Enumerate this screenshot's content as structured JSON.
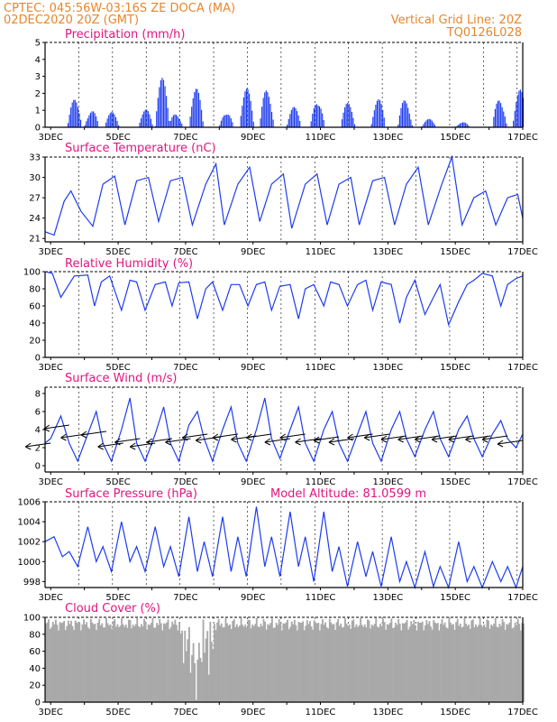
{
  "header": {
    "line1_left": "CPTEC:   045:56W-03:16S   ZE DOCA (MA)",
    "line2_left": "02DEC2020 20Z (GMT)",
    "line1_right": "Vertical Grid Line: 20Z",
    "line2_right": "TQ0126L028"
  },
  "x_labels": [
    "3DEC",
    "5DEC",
    "7DEC",
    "9DEC",
    "11DEC",
    "13DEC",
    "15DEC",
    "17DEC"
  ],
  "colors": {
    "header": "#e8862a",
    "title": "#e0157f",
    "series": "#1e3cf0",
    "cloud": "#a9a9a9"
  },
  "chart_data": [
    {
      "type": "bar",
      "title": "Precipitation (mm/h)",
      "ylim": [
        0,
        5
      ],
      "yticks": [
        0,
        1,
        2,
        3,
        4,
        5
      ],
      "x_start_day": 2.833,
      "x_end_day": 17,
      "step_hours": 1,
      "peaks": [
        [
          3.7,
          1.8
        ],
        [
          4.2,
          1.4
        ],
        [
          4.8,
          0.9
        ],
        [
          5.8,
          1.2
        ],
        [
          6.3,
          3.0
        ],
        [
          6.7,
          1.1
        ],
        [
          7.3,
          2.4
        ],
        [
          8.2,
          1.3
        ],
        [
          8.8,
          2.3
        ],
        [
          9.4,
          3.0
        ],
        [
          10.2,
          1.2
        ],
        [
          10.9,
          2.3
        ],
        [
          11.8,
          1.5
        ],
        [
          12.7,
          1.8
        ],
        [
          13.5,
          2.2
        ],
        [
          14.2,
          0.5
        ],
        [
          15.2,
          0.4
        ],
        [
          16.3,
          2.4
        ],
        [
          16.9,
          2.3
        ]
      ]
    },
    {
      "type": "line",
      "title": "Surface Temperature (nC)",
      "ylim": [
        20.5,
        33
      ],
      "yticks": [
        21,
        24,
        27,
        30,
        33
      ],
      "x": [
        2.83,
        3.1,
        3.4,
        3.6,
        3.9,
        4.25,
        4.55,
        4.9,
        5.2,
        5.55,
        5.9,
        6.2,
        6.55,
        6.9,
        7.2,
        7.6,
        7.9,
        8.15,
        8.55,
        8.9,
        9.2,
        9.55,
        9.9,
        10.15,
        10.55,
        10.9,
        11.2,
        11.55,
        11.9,
        12.15,
        12.55,
        12.9,
        13.2,
        13.55,
        13.9,
        14.2,
        14.6,
        14.9,
        15.2,
        15.55,
        15.9,
        16.2,
        16.55,
        16.85,
        17.0
      ],
      "y": [
        22.0,
        21.5,
        26.5,
        28.0,
        25.0,
        22.8,
        29.0,
        30.2,
        23.0,
        29.5,
        30.0,
        23.5,
        29.5,
        30.0,
        23.0,
        29.0,
        32.0,
        23.0,
        29.0,
        31.5,
        23.5,
        29.0,
        30.5,
        22.5,
        29.0,
        30.5,
        23.0,
        29.0,
        30.0,
        23.0,
        29.5,
        30.0,
        23.0,
        29.0,
        31.5,
        23.0,
        29.0,
        33.0,
        23.0,
        27.0,
        28.0,
        23.0,
        27.0,
        27.5,
        24.0
      ]
    },
    {
      "type": "line",
      "title": "Relative Humidity (%)",
      "ylim": [
        0,
        100
      ],
      "yticks": [
        0,
        20,
        40,
        60,
        80,
        100
      ],
      "x": [
        2.83,
        3.05,
        3.3,
        3.7,
        4.1,
        4.3,
        4.5,
        4.75,
        5.1,
        5.35,
        5.55,
        5.8,
        6.1,
        6.4,
        6.6,
        6.8,
        7.1,
        7.35,
        7.6,
        7.8,
        8.1,
        8.35,
        8.6,
        8.85,
        9.1,
        9.35,
        9.55,
        9.8,
        10.1,
        10.35,
        10.55,
        10.8,
        11.1,
        11.3,
        11.55,
        11.8,
        12.1,
        12.35,
        12.55,
        12.8,
        13.1,
        13.35,
        13.55,
        13.8,
        14.1,
        14.35,
        14.55,
        14.8,
        15.1,
        15.35,
        15.55,
        15.8,
        16.1,
        16.35,
        16.55,
        16.8,
        17.0
      ],
      "y": [
        100,
        98,
        70,
        95,
        96,
        60,
        88,
        95,
        55,
        90,
        88,
        55,
        85,
        88,
        60,
        87,
        88,
        45,
        80,
        88,
        55,
        85,
        85,
        60,
        85,
        88,
        55,
        83,
        85,
        45,
        80,
        85,
        60,
        88,
        85,
        60,
        85,
        90,
        55,
        88,
        85,
        40,
        70,
        90,
        50,
        70,
        85,
        38,
        65,
        85,
        90,
        98,
        95,
        60,
        85,
        92,
        95
      ]
    },
    {
      "type": "line",
      "title": "Surface Wind (m/s)",
      "ylim": [
        -0.7,
        8.7
      ],
      "yticks": [
        0,
        2,
        4,
        6,
        8
      ],
      "x": [
        2.83,
        3.0,
        3.3,
        3.55,
        3.8,
        4.1,
        4.35,
        4.55,
        4.8,
        5.1,
        5.35,
        5.55,
        5.8,
        6.1,
        6.35,
        6.55,
        6.8,
        7.1,
        7.35,
        7.55,
        7.8,
        8.1,
        8.35,
        8.55,
        8.8,
        9.1,
        9.35,
        9.55,
        9.8,
        10.1,
        10.35,
        10.55,
        10.8,
        11.1,
        11.35,
        11.55,
        11.8,
        12.1,
        12.35,
        12.55,
        12.8,
        13.1,
        13.35,
        13.55,
        13.8,
        14.1,
        14.35,
        14.55,
        14.8,
        15.1,
        15.35,
        15.55,
        15.8,
        16.1,
        16.35,
        16.55,
        16.8,
        17.0
      ],
      "y": [
        2.5,
        3.0,
        5.5,
        2.5,
        0.5,
        3.5,
        6.0,
        2.5,
        0.5,
        4.0,
        7.5,
        2.5,
        0.5,
        3.5,
        6.5,
        2.5,
        0.5,
        4.5,
        6.0,
        3.0,
        0.5,
        4.0,
        6.5,
        2.5,
        0.5,
        4.0,
        7.5,
        3.0,
        0.8,
        4.0,
        6.5,
        2.5,
        0.5,
        4.0,
        6.0,
        2.5,
        0.5,
        3.5,
        6.0,
        2.5,
        0.5,
        4.0,
        6.0,
        3.0,
        1.0,
        4.0,
        6.0,
        3.0,
        1.0,
        4.0,
        5.5,
        3.0,
        1.0,
        3.5,
        5.0,
        3.0,
        2.0,
        3.5
      ],
      "arrows": [
        [
          3.0,
          2.5
        ],
        [
          3.55,
          4.5
        ],
        [
          4.05,
          3.5
        ],
        [
          4.65,
          3.8
        ],
        [
          5.15,
          2.5
        ],
        [
          5.65,
          3.0
        ],
        [
          6.1,
          2.5
        ],
        [
          6.6,
          3.0
        ],
        [
          7.15,
          3.0
        ],
        [
          7.65,
          3.5
        ],
        [
          8.05,
          3.2
        ],
        [
          8.55,
          3.5
        ],
        [
          9.1,
          3.3
        ],
        [
          9.55,
          3.5
        ],
        [
          10.1,
          3.0
        ],
        [
          10.55,
          3.5
        ],
        [
          11.0,
          3.0
        ],
        [
          11.55,
          3.2
        ],
        [
          12.0,
          3.0
        ],
        [
          12.55,
          3.5
        ],
        [
          13.05,
          3.5
        ],
        [
          13.55,
          3.3
        ],
        [
          14.05,
          3.3
        ],
        [
          14.55,
          3.3
        ],
        [
          15.05,
          3.3
        ],
        [
          15.55,
          3.3
        ],
        [
          16.05,
          3.3
        ],
        [
          16.55,
          3.3
        ],
        [
          17.0,
          2.8
        ]
      ]
    },
    {
      "type": "line",
      "title": "Surface Pressure (hPa)",
      "annotation": "Model Altitude: 81.0599 m",
      "ylim": [
        997.4,
        1006
      ],
      "yticks": [
        998,
        1000,
        1002,
        1004,
        1006
      ],
      "x": [
        2.83,
        3.1,
        3.35,
        3.55,
        3.8,
        4.1,
        4.35,
        4.55,
        4.8,
        5.1,
        5.35,
        5.55,
        5.8,
        6.1,
        6.35,
        6.55,
        6.8,
        7.1,
        7.35,
        7.55,
        7.8,
        8.1,
        8.35,
        8.55,
        8.8,
        9.1,
        9.35,
        9.55,
        9.8,
        10.1,
        10.35,
        10.55,
        10.8,
        11.1,
        11.35,
        11.55,
        11.8,
        12.1,
        12.35,
        12.55,
        12.8,
        13.1,
        13.35,
        13.55,
        13.8,
        14.1,
        14.35,
        14.55,
        14.8,
        15.1,
        15.35,
        15.55,
        15.8,
        16.1,
        16.35,
        16.55,
        16.8,
        17.0
      ],
      "y": [
        1002.0,
        1002.5,
        1000.5,
        1001.0,
        999.5,
        1003.5,
        1000.0,
        1001.5,
        999.0,
        1004.0,
        1000.0,
        1001.5,
        999.0,
        1003.5,
        999.5,
        1001.5,
        998.5,
        1004.5,
        999.0,
        1002.0,
        998.5,
        1004.5,
        999.0,
        1002.5,
        998.5,
        1005.5,
        999.5,
        1002.5,
        998.5,
        1005.0,
        999.5,
        1002.5,
        998.0,
        1005.0,
        999.0,
        1001.5,
        997.5,
        1002.0,
        998.5,
        1001.0,
        997.5,
        1002.5,
        998.0,
        1000.0,
        997.0,
        1001.0,
        997.5,
        999.5,
        997.0,
        1002.0,
        998.0,
        999.5,
        997.0,
        1000.0,
        998.0,
        999.5,
        997.0,
        999.5
      ]
    },
    {
      "type": "bar",
      "title": "Cloud Cover (%)",
      "ylim": [
        0,
        100
      ],
      "yticks": [
        0,
        20,
        40,
        60,
        80,
        100
      ],
      "x_start_day": 2.833,
      "x_end_day": 17,
      "step_hours": 1,
      "base_level": 92,
      "dip_near_day": 7.3,
      "dip_low_value": 0
    }
  ]
}
